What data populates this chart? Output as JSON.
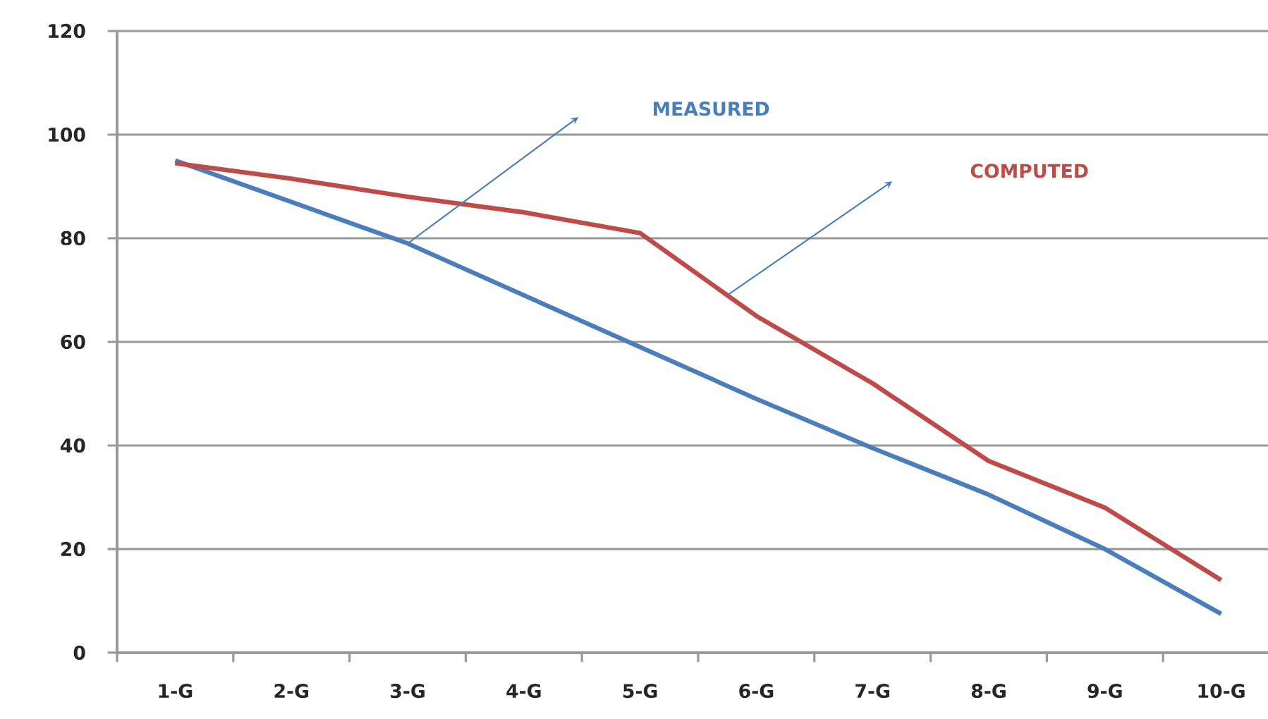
{
  "chart_data": {
    "type": "line",
    "categories": [
      "1-G",
      "2-G",
      "3-G",
      "4-G",
      "5-G",
      "6-G",
      "7-G",
      "8-G",
      "9-G",
      "10-G"
    ],
    "series": [
      {
        "name": "MEASURED",
        "color": "#4a7ebb",
        "values": [
          95,
          87,
          79,
          69,
          59,
          49,
          39.5,
          30.5,
          20,
          7.5
        ]
      },
      {
        "name": "COMPUTED",
        "color": "#be4b48",
        "values": [
          94.5,
          91.5,
          88,
          85,
          81,
          65,
          52,
          37,
          28,
          14
        ]
      }
    ],
    "ylim": [
      0,
      120
    ],
    "yticks": [
      0,
      20,
      40,
      60,
      80,
      100,
      120
    ],
    "grid": "y",
    "legend": false,
    "marker": "none",
    "line_style": "solid"
  }
}
